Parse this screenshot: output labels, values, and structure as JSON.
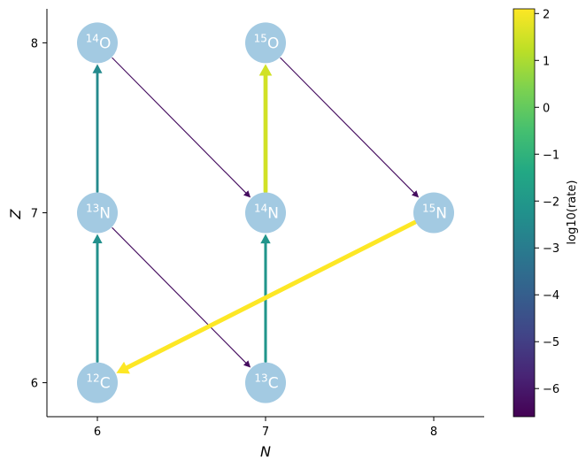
{
  "diagram": {
    "xlabel": "N",
    "ylabel": "Z",
    "xticks": [
      6,
      7,
      8
    ],
    "yticks": [
      6,
      7,
      8
    ],
    "xlim": [
      5.7,
      8.3
    ],
    "ylim": [
      5.8,
      8.2
    ],
    "node_color": "#a3cae2",
    "nodes": [
      {
        "id": "C12",
        "mass": "12",
        "element": "C",
        "N": 6,
        "Z": 6
      },
      {
        "id": "C13",
        "mass": "13",
        "element": "C",
        "N": 7,
        "Z": 6
      },
      {
        "id": "N13",
        "mass": "13",
        "element": "N",
        "N": 6,
        "Z": 7
      },
      {
        "id": "N14",
        "mass": "14",
        "element": "N",
        "N": 7,
        "Z": 7
      },
      {
        "id": "N15",
        "mass": "15",
        "element": "N",
        "N": 8,
        "Z": 7
      },
      {
        "id": "O14",
        "mass": "14",
        "element": "O",
        "N": 6,
        "Z": 8
      },
      {
        "id": "O15",
        "mass": "15",
        "element": "O",
        "N": 7,
        "Z": 8
      }
    ],
    "edges": [
      {
        "from": "C12",
        "to": "N13",
        "log10_rate": -2.3
      },
      {
        "from": "N13",
        "to": "C13",
        "log10_rate": -6.3
      },
      {
        "from": "C13",
        "to": "N14",
        "log10_rate": -2.1
      },
      {
        "from": "N14",
        "to": "O15",
        "log10_rate": 1.5
      },
      {
        "from": "O15",
        "to": "N15",
        "log10_rate": -6.3
      },
      {
        "from": "N15",
        "to": "C12",
        "log10_rate": 2.1
      },
      {
        "from": "N13",
        "to": "O14",
        "log10_rate": -2.5
      },
      {
        "from": "O14",
        "to": "N14",
        "log10_rate": -6.3
      }
    ]
  },
  "colorbar": {
    "label": "log10(rate)",
    "min": -6.6,
    "max": 2.1,
    "ticks": [
      "2",
      "1",
      "0",
      "−1",
      "−2",
      "−3",
      "−4",
      "−5",
      "−6"
    ],
    "tick_values": [
      2,
      1,
      0,
      -1,
      -2,
      -3,
      -4,
      -5,
      -6
    ],
    "colormap": "viridis"
  }
}
